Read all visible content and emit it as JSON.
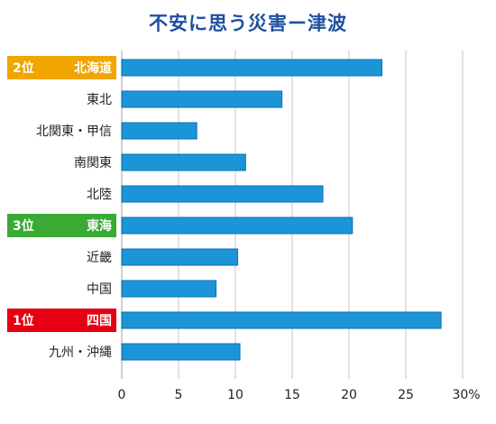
{
  "title": "不安に思う災害ー津波",
  "chart_data": {
    "type": "bar",
    "orientation": "horizontal",
    "title": "不安に思う災害ー津波",
    "categories": [
      "北海道",
      "東北",
      "北関東・甲信",
      "南関東",
      "北陸",
      "東海",
      "近畿",
      "中国",
      "四国",
      "九州・沖縄"
    ],
    "values": [
      22.9,
      14.1,
      6.6,
      10.9,
      17.7,
      20.3,
      10.2,
      8.3,
      28.1,
      10.4
    ],
    "rank_badges": [
      {
        "category": "北海道",
        "rank_label": "2位",
        "color": "#f0a500"
      },
      {
        "category": "東海",
        "rank_label": "3位",
        "color": "#3aaa35"
      },
      {
        "category": "四国",
        "rank_label": "1位",
        "color": "#e60012"
      }
    ],
    "x_ticks": [
      "0",
      "5",
      "10",
      "15",
      "20",
      "25",
      "30%"
    ],
    "xlim": [
      0,
      30
    ],
    "xlabel": "",
    "ylabel": "",
    "grid": "vertical",
    "bar_color": "#1b95d8",
    "bar_border_color": "#0b6fb0",
    "title_color": "#1d4fa0",
    "gridline_color": "#d9d9d9"
  }
}
